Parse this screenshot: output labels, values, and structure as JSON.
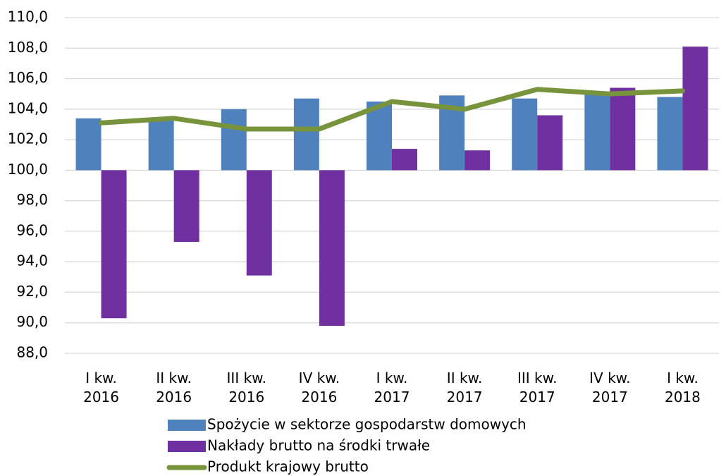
{
  "chart_data": {
    "type": "bar_line",
    "categories": [
      "I kw.\n2016",
      "II kw.\n2016",
      "III kw.\n2016",
      "IV kw.\n2016",
      "I kw.\n2017",
      "II kw.\n2017",
      "III kw.\n2017",
      "IV kw.\n2017",
      "I kw.\n2018"
    ],
    "series": [
      {
        "name": "Spożycie w sektorze gospodarstw domowych",
        "color": "#4f81bd",
        "kind": "bar",
        "values": [
          103.4,
          103.3,
          104.0,
          104.7,
          104.5,
          104.9,
          104.7,
          105.0,
          104.8
        ]
      },
      {
        "name": "Nakłady brutto na środki trwałe",
        "color": "#7030a0",
        "kind": "bar",
        "values": [
          90.3,
          95.3,
          93.1,
          89.8,
          101.4,
          101.3,
          103.6,
          105.4,
          108.1
        ]
      },
      {
        "name": "Produkt krajowy brutto",
        "color": "#77933c",
        "kind": "line",
        "values": [
          103.1,
          103.4,
          102.7,
          102.7,
          104.5,
          104.0,
          105.3,
          105.0,
          105.2
        ]
      }
    ],
    "ylim": [
      88,
      110
    ],
    "yticks": [
      {
        "value": 88,
        "label": "88,0"
      },
      {
        "value": 90,
        "label": "90,0"
      },
      {
        "value": 92,
        "label": "92,0"
      },
      {
        "value": 94,
        "label": "94,0"
      },
      {
        "value": 96,
        "label": "96,0"
      },
      {
        "value": 98,
        "label": "98,0"
      },
      {
        "value": 100,
        "label": "100,0"
      },
      {
        "value": 102,
        "label": "102,0"
      },
      {
        "value": 104,
        "label": "104,0"
      },
      {
        "value": 106,
        "label": "106,0"
      },
      {
        "value": 108,
        "label": "108,0"
      },
      {
        "value": 110,
        "label": "110,0"
      }
    ],
    "x_axis_crosses": 100,
    "grid": true,
    "legend": "bottom"
  }
}
